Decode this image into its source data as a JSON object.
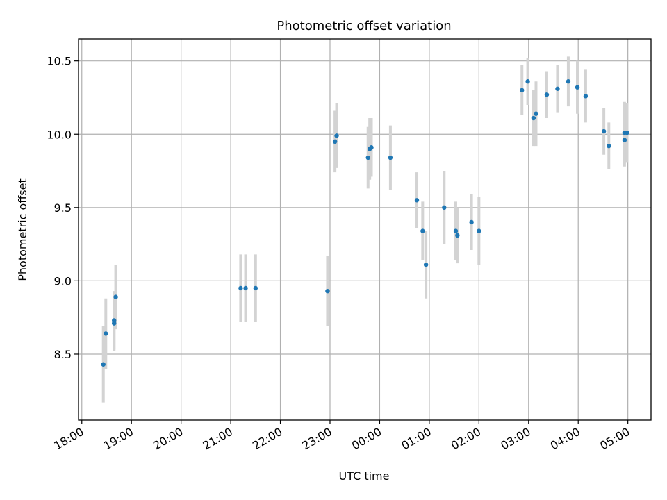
{
  "chart_data": {
    "type": "scatter",
    "title": "Photometric offset variation",
    "xlabel": "UTC time",
    "ylabel": "Photometric offset",
    "x_tick_labels": [
      "18:00",
      "19:00",
      "20:00",
      "21:00",
      "22:00",
      "23:00",
      "00:00",
      "01:00",
      "02:00",
      "03:00",
      "04:00",
      "05:00"
    ],
    "y_ticks": [
      8.5,
      9.0,
      9.5,
      10.0,
      10.5
    ],
    "y_tick_labels": [
      "8.5",
      "9.0",
      "9.5",
      "10.0",
      "10.5"
    ],
    "xlim": [
      "17:56",
      "05:28"
    ],
    "ylim": [
      8.05,
      10.65
    ],
    "grid": true,
    "colors": {
      "points": "#1f77b4",
      "errorbars": "#d3d3d3",
      "grid": "#b0b0b0"
    },
    "points": [
      {
        "t": "18:26",
        "y": 8.43,
        "err": 0.26
      },
      {
        "t": "18:29",
        "y": 8.64,
        "err": 0.24
      },
      {
        "t": "18:39",
        "y": 8.73,
        "err": 0.2
      },
      {
        "t": "18:39",
        "y": 8.71,
        "err": 0.19
      },
      {
        "t": "18:41",
        "y": 8.89,
        "err": 0.22
      },
      {
        "t": "21:12",
        "y": 8.95,
        "err": 0.23
      },
      {
        "t": "21:18",
        "y": 8.95,
        "err": 0.23
      },
      {
        "t": "21:30",
        "y": 8.95,
        "err": 0.23
      },
      {
        "t": "22:57",
        "y": 8.93,
        "err": 0.24
      },
      {
        "t": "23:06",
        "y": 9.95,
        "err": 0.21
      },
      {
        "t": "23:08",
        "y": 9.99,
        "err": 0.22
      },
      {
        "t": "23:46",
        "y": 9.84,
        "err": 0.21
      },
      {
        "t": "23:48",
        "y": 9.9,
        "err": 0.21
      },
      {
        "t": "23:50",
        "y": 9.91,
        "err": 0.2
      },
      {
        "t": "00:13",
        "y": 9.84,
        "err": 0.22
      },
      {
        "t": "00:45",
        "y": 9.55,
        "err": 0.19
      },
      {
        "t": "00:52",
        "y": 9.34,
        "err": 0.2
      },
      {
        "t": "00:56",
        "y": 9.11,
        "err": 0.23
      },
      {
        "t": "01:18",
        "y": 9.5,
        "err": 0.25
      },
      {
        "t": "01:32",
        "y": 9.34,
        "err": 0.2
      },
      {
        "t": "01:34",
        "y": 9.31,
        "err": 0.19
      },
      {
        "t": "01:51",
        "y": 9.4,
        "err": 0.19
      },
      {
        "t": "02:00",
        "y": 9.34,
        "err": 0.23
      },
      {
        "t": "02:52",
        "y": 10.3,
        "err": 0.17
      },
      {
        "t": "02:59",
        "y": 10.36,
        "err": 0.16
      },
      {
        "t": "03:06",
        "y": 10.11,
        "err": 0.19
      },
      {
        "t": "03:09",
        "y": 10.14,
        "err": 0.22
      },
      {
        "t": "03:22",
        "y": 10.27,
        "err": 0.16
      },
      {
        "t": "03:35",
        "y": 10.31,
        "err": 0.16
      },
      {
        "t": "03:48",
        "y": 10.36,
        "err": 0.17
      },
      {
        "t": "03:59",
        "y": 10.32,
        "err": 0.18
      },
      {
        "t": "04:09",
        "y": 10.26,
        "err": 0.18
      },
      {
        "t": "04:31",
        "y": 10.02,
        "err": 0.16
      },
      {
        "t": "04:37",
        "y": 9.92,
        "err": 0.16
      },
      {
        "t": "04:56",
        "y": 10.01,
        "err": 0.21
      },
      {
        "t": "04:56",
        "y": 9.96,
        "err": 0.18
      },
      {
        "t": "04:59",
        "y": 10.01,
        "err": 0.2
      }
    ]
  }
}
